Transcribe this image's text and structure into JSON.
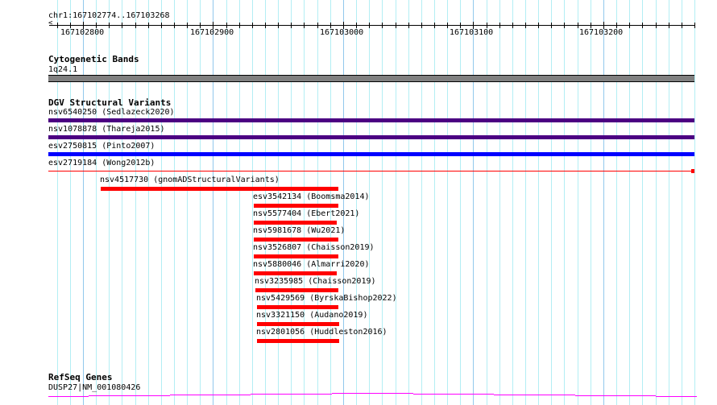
{
  "ruler": {
    "location": "chr1:167102774..167103268",
    "ticks": [
      "167102800",
      "167102900",
      "167103000",
      "167103100",
      "167103200"
    ]
  },
  "tracks": {
    "cytobands": {
      "title": "Cytogenetic Bands",
      "band": "1q24.1",
      "color": "#808080"
    },
    "dgv": {
      "title": "DGV Structural Variants",
      "features": [
        {
          "label": "nsv6540250 (Sedlazeck2020)",
          "color": "#4b0082"
        },
        {
          "label": "nsv1078878 (Thareja2015)",
          "color": "#4b0082"
        },
        {
          "label": "esv2750815 (Pinto2007)",
          "color": "#0000ff"
        },
        {
          "label": "esv2719184 (Wong2012b)",
          "color": "#ff0000"
        },
        {
          "label": "nsv4517730 (gnomADStructuralVariants)",
          "color": "#ff0000"
        },
        {
          "label": "esv3542134 (Boomsma2014)",
          "color": "#ff0000"
        },
        {
          "label": "nsv5577404 (Ebert2021)",
          "color": "#ff0000"
        },
        {
          "label": "nsv5981678 (Wu2021)",
          "color": "#ff0000"
        },
        {
          "label": "nsv3526807 (Chaisson2019)",
          "color": "#ff0000"
        },
        {
          "label": "nsv5880046 (Almarri2020)",
          "color": "#ff0000"
        },
        {
          "label": "nsv3235985 (Chaisson2019)",
          "color": "#ff0000"
        },
        {
          "label": "nsv5429569 (ByrskaBishop2022)",
          "color": "#ff0000"
        },
        {
          "label": "nsv3321150 (Audano2019)",
          "color": "#ff0000"
        },
        {
          "label": "nsv2801056 (Huddleston2016)",
          "color": "#ff0000"
        }
      ]
    },
    "refseq": {
      "title": "RefSeq Genes",
      "gene": "DUSP27|NM_001080426",
      "color": "#ff00ff"
    }
  }
}
